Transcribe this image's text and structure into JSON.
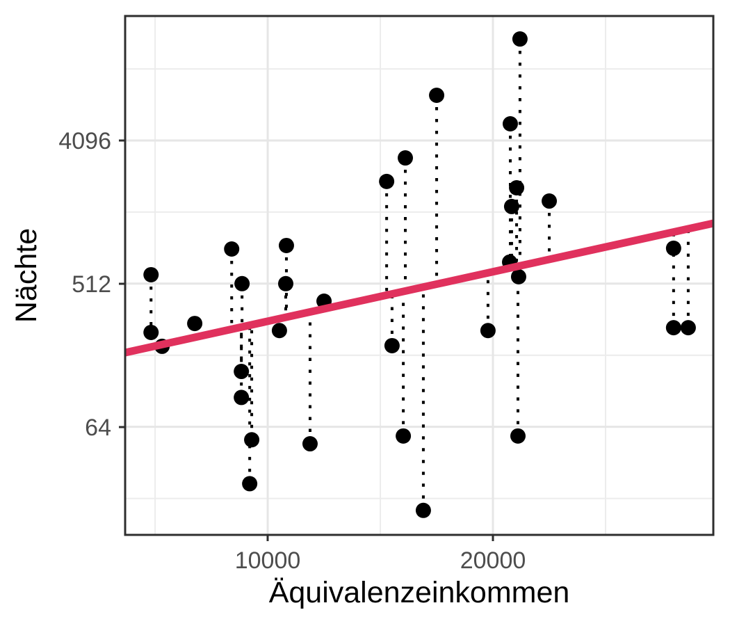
{
  "chart_data": {
    "type": "scatter",
    "title": "",
    "xlabel": "Äquivalenzeinkommen",
    "ylabel": "Nächte",
    "x_scale": "linear",
    "y_scale": "log2",
    "grid": true,
    "legend": false,
    "x_domain": [
      3670,
      29784
    ],
    "x_ticks": [
      10000,
      20000
    ],
    "x_tick_labels": [
      "10000",
      "20000"
    ],
    "x_minor_ticks": [
      5000,
      15000,
      25000
    ],
    "y_ticks": [
      4096,
      512,
      64
    ],
    "y_tick_labels": [
      "4096",
      "512",
      "64"
    ],
    "y_minor_ticks": [
      11585,
      1448,
      181,
      22.6
    ],
    "point_color": "#000000",
    "residual_style": "dotted vertical segment from each point to trend line",
    "trend_line": {
      "color": "#E0315D",
      "x1": 3670,
      "nights1": 188,
      "x2": 29784,
      "nights2": 1230
    },
    "points": [
      {
        "income": 4820,
        "nights": 583
      },
      {
        "income": 4820,
        "nights": 252
      },
      {
        "income": 5310,
        "nights": 206
      },
      {
        "income": 6760,
        "nights": 287
      },
      {
        "income": 8400,
        "nights": 847
      },
      {
        "income": 8830,
        "nights": 143
      },
      {
        "income": 8830,
        "nights": 98
      },
      {
        "income": 8860,
        "nights": 512
      },
      {
        "income": 9200,
        "nights": 28
      },
      {
        "income": 9290,
        "nights": 53
      },
      {
        "income": 10520,
        "nights": 259
      },
      {
        "income": 10800,
        "nights": 512
      },
      {
        "income": 10830,
        "nights": 891
      },
      {
        "income": 11880,
        "nights": 50
      },
      {
        "income": 12500,
        "nights": 397
      },
      {
        "income": 15280,
        "nights": 2260
      },
      {
        "income": 15520,
        "nights": 208
      },
      {
        "income": 16110,
        "nights": 3180
      },
      {
        "income": 16020,
        "nights": 56
      },
      {
        "income": 17500,
        "nights": 7900
      },
      {
        "income": 16910,
        "nights": 19
      },
      {
        "income": 19780,
        "nights": 259
      },
      {
        "income": 21200,
        "nights": 17900
      },
      {
        "income": 20770,
        "nights": 5220
      },
      {
        "income": 21050,
        "nights": 2060
      },
      {
        "income": 20830,
        "nights": 1570
      },
      {
        "income": 20740,
        "nights": 700
      },
      {
        "income": 21140,
        "nights": 566
      },
      {
        "income": 21110,
        "nights": 56
      },
      {
        "income": 22500,
        "nights": 1700
      },
      {
        "income": 28020,
        "nights": 856
      },
      {
        "income": 28020,
        "nights": 270
      },
      {
        "income": 28670,
        "nights": 270
      }
    ]
  }
}
